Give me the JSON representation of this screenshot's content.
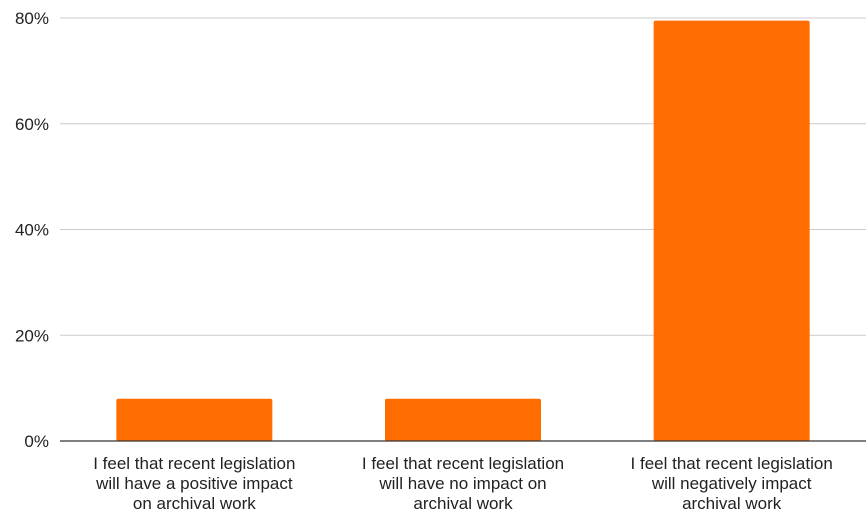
{
  "chart_data": {
    "type": "bar",
    "title": "",
    "xlabel": "",
    "ylabel": "",
    "categories": [
      [
        "I feel that recent legislation",
        "will have a positive impact",
        "on archival work"
      ],
      [
        "I feel that recent legislation",
        "will have no impact on",
        "archival work"
      ],
      [
        "I feel that recent legislation",
        "will negatively impact",
        "archival work"
      ]
    ],
    "values": [
      8,
      8,
      79.5
    ],
    "ylim": [
      0,
      80
    ],
    "yticks": [
      0,
      20,
      40,
      60,
      80
    ],
    "ytick_labels": [
      "0%",
      "20%",
      "40%",
      "60%",
      "80%"
    ],
    "grid": true,
    "legend": "none",
    "bar_color": "#ff6d01",
    "grid_color": "#cccccc",
    "axis_color": "#333333"
  }
}
